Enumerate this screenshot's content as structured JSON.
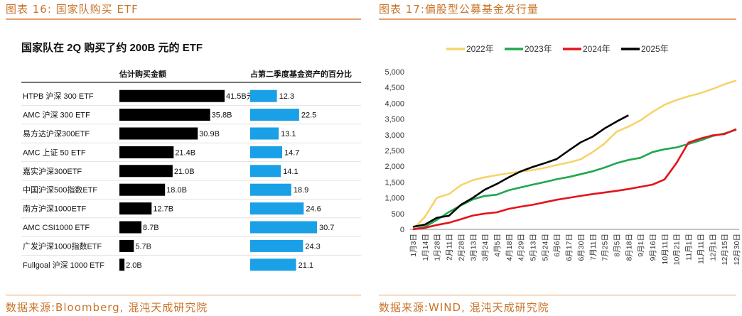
{
  "headers": {
    "left": "图表 16:  国家队购买 ETF",
    "right": "图表 17:偏股型公募基金发行量"
  },
  "footers": {
    "left": "数据来源:Bloomberg, 混沌天成研究院",
    "right": "数据来源:WIND, 混沌天成研究院"
  },
  "colors": {
    "header": "#c8742a",
    "black_bar": "#000000",
    "blue_bar": "#1aa0e6",
    "s2022": "#f6d36b",
    "s2023": "#1fa84d",
    "s2024": "#e5131a",
    "s2025": "#000000"
  },
  "chart_data": [
    {
      "type": "bar",
      "title": "国家队在 2Q 购买了约 200B 元的 ETF",
      "columns": [
        "估计购买金额",
        "占第二季度基金资产的百分比"
      ],
      "categories": [
        "HTPB 沪深 300 ETF",
        "AMC 沪深 300 ETF",
        "易方达沪深300ETF",
        "AMC 上证 50 ETF",
        "嘉实沪深300ETF",
        "中国沪深500指数ETF",
        "南方沪深1000ETF",
        "AMC CSI1000 ETF",
        "广发沪深1000指数ETF",
        "Fullgoal 沪深 1000 ETF"
      ],
      "series": [
        {
          "name": "估计购买金额",
          "values": [
            41.5,
            35.8,
            30.9,
            21.4,
            21.0,
            18.0,
            12.7,
            8.7,
            5.7,
            2.0
          ],
          "labels": [
            "41.5B元",
            "35.8B",
            "30.9B",
            "21.4B",
            "21.0B",
            "18.0B",
            "12.7B",
            "8.7B",
            "5.7B",
            "2.0B"
          ]
        },
        {
          "name": "占第二季度基金资产的百分比",
          "values": [
            12.3,
            22.5,
            13.1,
            14.7,
            14.1,
            18.9,
            24.6,
            30.7,
            24.3,
            21.1
          ],
          "labels": [
            "12.3",
            "22.5",
            "13.1",
            "14.7",
            "14.1",
            "18.9",
            "24.6",
            "30.7",
            "24.3",
            "21.1"
          ]
        }
      ]
    },
    {
      "type": "line",
      "title": "",
      "ylim": [
        0,
        5000
      ],
      "yticks": [
        "0",
        "500",
        "1,000",
        "1,500",
        "2,000",
        "2,500",
        "3,000",
        "3,500",
        "4,000",
        "4,500",
        "5,000"
      ],
      "ytick_values": [
        0,
        500,
        1000,
        1500,
        2000,
        2500,
        3000,
        3500,
        4000,
        4500,
        5000
      ],
      "x_range": [
        "1月3日",
        "12月31日"
      ],
      "xticks": [
        "1月3日",
        "1月14日",
        "1月28日",
        "2月11日",
        "2月28日",
        "3月13日",
        "3月24日",
        "4月5日",
        "4月18日",
        "4月29日",
        "5月13日",
        "5月24日",
        "6月6日",
        "6月17日",
        "6月30日",
        "7月11日",
        "7月25日",
        "8月5日",
        "8月18日",
        "9月1日",
        "9月16日",
        "10月11日",
        "10月21日",
        "11月1日",
        "11月11日",
        "12月1日",
        "12月15日",
        "12月30日"
      ],
      "legend": "top",
      "series": [
        {
          "name": "2022年",
          "points": [
            [
              "1月3日",
              0
            ],
            [
              "1月14日",
              400
            ],
            [
              "1月28日",
              1000
            ],
            [
              "2月11日",
              1120
            ],
            [
              "2月28日",
              1400
            ],
            [
              "3月13日",
              1560
            ],
            [
              "3月24日",
              1650
            ],
            [
              "4月5日",
              1720
            ],
            [
              "4月18日",
              1780
            ],
            [
              "4月29日",
              1830
            ],
            [
              "5月13日",
              1880
            ],
            [
              "5月24日",
              1950
            ],
            [
              "6月6日",
              2040
            ],
            [
              "6月17日",
              2120
            ],
            [
              "6月30日",
              2220
            ],
            [
              "7月11日",
              2450
            ],
            [
              "7月25日",
              2720
            ],
            [
              "8月5日",
              3100
            ],
            [
              "8月18日",
              3260
            ],
            [
              "9月1日",
              3460
            ],
            [
              "9月16日",
              3720
            ],
            [
              "10月11日",
              3950
            ],
            [
              "10月21日",
              4100
            ],
            [
              "11月1日",
              4220
            ],
            [
              "11月11日",
              4320
            ],
            [
              "12月1日",
              4450
            ],
            [
              "12月15日",
              4600
            ],
            [
              "12月30日",
              4720
            ]
          ]
        },
        {
          "name": "2023年",
          "points": [
            [
              "1月3日",
              0
            ],
            [
              "1月14日",
              80
            ],
            [
              "1月28日",
              300
            ],
            [
              "2月11日",
              550
            ],
            [
              "2月28日",
              760
            ],
            [
              "3月13日",
              950
            ],
            [
              "3月24日",
              1060
            ],
            [
              "4月5日",
              1100
            ],
            [
              "4月18日",
              1240
            ],
            [
              "4月29日",
              1330
            ],
            [
              "5月13日",
              1420
            ],
            [
              "5月24日",
              1500
            ],
            [
              "6月6日",
              1590
            ],
            [
              "6月17日",
              1660
            ],
            [
              "6月30日",
              1750
            ],
            [
              "7月11日",
              1840
            ],
            [
              "7月25日",
              1960
            ],
            [
              "8月5日",
              2100
            ],
            [
              "8月18日",
              2200
            ],
            [
              "9月1日",
              2270
            ],
            [
              "9月16日",
              2450
            ],
            [
              "10月11日",
              2540
            ],
            [
              "10月21日",
              2600
            ],
            [
              "11月1日",
              2710
            ],
            [
              "11月11日",
              2820
            ],
            [
              "12月1日",
              2960
            ],
            [
              "12月15日",
              3040
            ],
            [
              "12月30日",
              3160
            ]
          ]
        },
        {
          "name": "2024年",
          "points": [
            [
              "1月3日",
              0
            ],
            [
              "1月14日",
              50
            ],
            [
              "1月28日",
              140
            ],
            [
              "2月11日",
              210
            ],
            [
              "2月28日",
              320
            ],
            [
              "3月13日",
              440
            ],
            [
              "3月24日",
              500
            ],
            [
              "4月5日",
              540
            ],
            [
              "4月18日",
              650
            ],
            [
              "4月29日",
              720
            ],
            [
              "5月13日",
              780
            ],
            [
              "5月24日",
              860
            ],
            [
              "6月6日",
              940
            ],
            [
              "6月17日",
              1000
            ],
            [
              "6月30日",
              1060
            ],
            [
              "7月11日",
              1120
            ],
            [
              "7月25日",
              1170
            ],
            [
              "8月5日",
              1220
            ],
            [
              "8月18日",
              1280
            ],
            [
              "9月1日",
              1350
            ],
            [
              "9月16日",
              1420
            ],
            [
              "10月11日",
              1580
            ],
            [
              "10月21日",
              2100
            ],
            [
              "11月1日",
              2750
            ],
            [
              "11月11日",
              2880
            ],
            [
              "12月1日",
              2980
            ],
            [
              "12月15日",
              3020
            ],
            [
              "12月30日",
              3180
            ]
          ]
        },
        {
          "name": "2025年",
          "points": [
            [
              "1月3日",
              80
            ],
            [
              "1月14日",
              150
            ],
            [
              "1月28日",
              370
            ],
            [
              "2月11日",
              430
            ],
            [
              "2月28日",
              780
            ],
            [
              "3月13日",
              1000
            ],
            [
              "3月24日",
              1260
            ],
            [
              "4月5日",
              1440
            ],
            [
              "4月18日",
              1650
            ],
            [
              "4月29日",
              1840
            ],
            [
              "5月13日",
              1980
            ],
            [
              "5月24日",
              2100
            ],
            [
              "6月6日",
              2230
            ],
            [
              "6月17日",
              2500
            ],
            [
              "6月30日",
              2760
            ],
            [
              "7月11日",
              2940
            ],
            [
              "7月25日",
              3200
            ],
            [
              "8月5日",
              3420
            ],
            [
              "8月18日",
              3620
            ]
          ]
        }
      ]
    }
  ]
}
